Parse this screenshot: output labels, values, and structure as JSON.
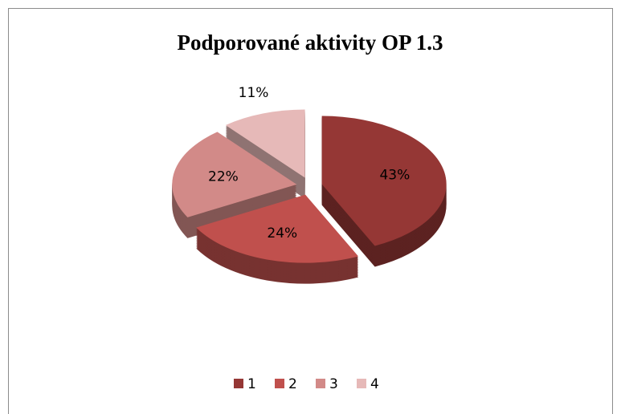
{
  "chart_data": {
    "type": "pie",
    "title": "Podporované aktivity  OP 1.3",
    "categories": [
      "1",
      "2",
      "3",
      "4"
    ],
    "values": [
      43,
      24,
      22,
      11
    ],
    "value_labels": [
      "43%",
      "24%",
      "22%",
      "11%"
    ],
    "colors": [
      "#953735",
      "#c0504d",
      "#d28a88",
      "#e6b9b8"
    ],
    "legend": "bottom"
  }
}
